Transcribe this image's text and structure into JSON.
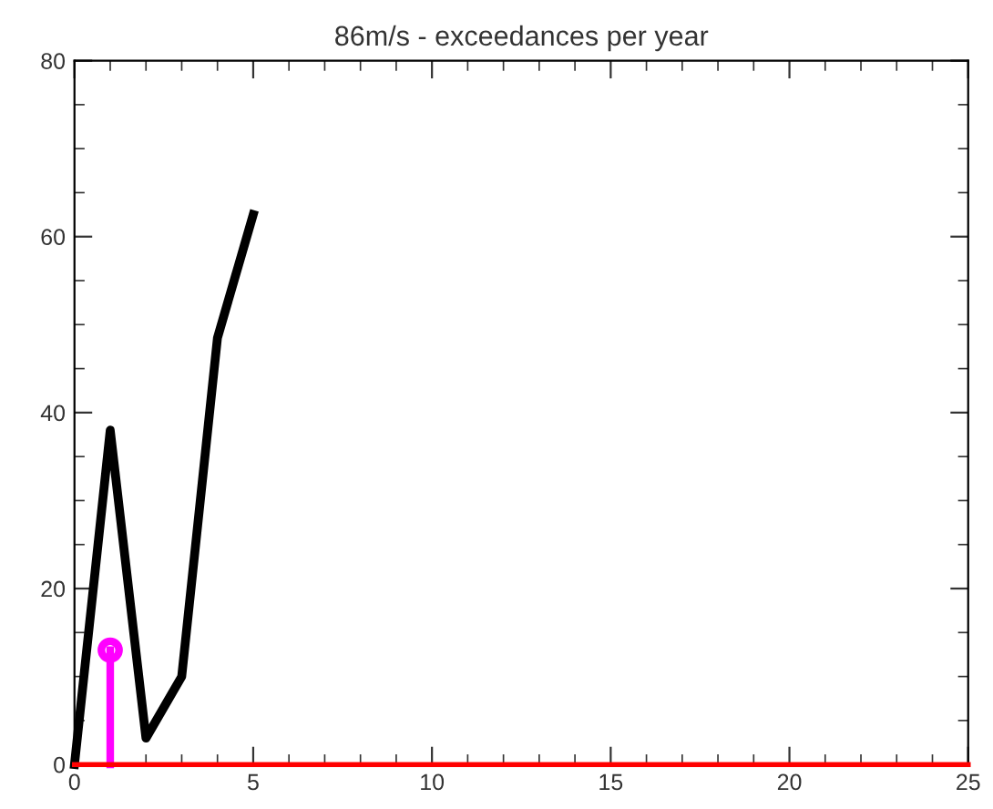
{
  "chart_data": {
    "type": "line",
    "title": "86m/s - exceedances per year",
    "series": [
      {
        "color": "#000000",
        "x": [
          0,
          1,
          2,
          3,
          4,
          5
        ],
        "values": [
          0,
          38,
          3,
          10,
          48.5,
          62.5
        ]
      },
      {
        "type": "lollipop",
        "color": "#ff00ff",
        "x": [
          1
        ],
        "values": [
          13
        ],
        "marker": "circle"
      },
      {
        "color": "#ff0000",
        "x": [
          0,
          25
        ],
        "values": [
          0,
          0
        ]
      }
    ],
    "xlim": [
      0,
      25
    ],
    "xticks": [
      0,
      5,
      10,
      15,
      20,
      25
    ],
    "ylim": [
      0,
      80
    ],
    "yticks": [
      0,
      20,
      40,
      60,
      80
    ],
    "grid": false,
    "legend": false
  }
}
